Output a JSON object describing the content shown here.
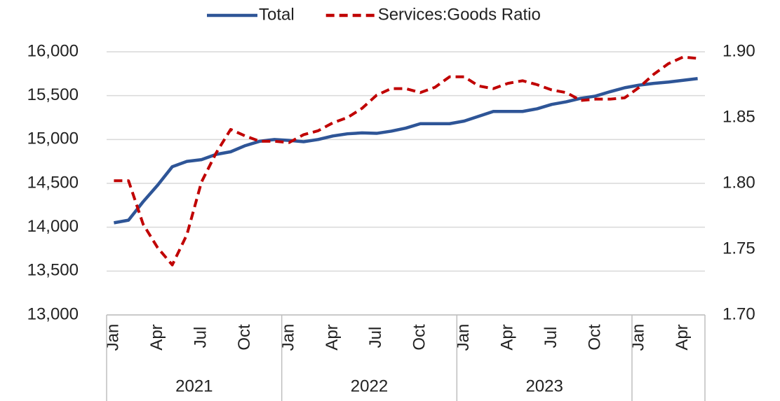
{
  "chart_data": {
    "type": "line",
    "categories": [
      "Jan",
      null,
      null,
      "Apr",
      null,
      null,
      "Jul",
      null,
      null,
      "Oct",
      null,
      null,
      "Jan",
      null,
      null,
      "Apr",
      null,
      null,
      "Jul",
      null,
      null,
      "Oct",
      null,
      null,
      "Jan",
      null,
      null,
      "Apr",
      null,
      null,
      "Jul",
      null,
      null,
      "Oct",
      null,
      null,
      "Jan",
      null,
      null,
      "Apr",
      null
    ],
    "groups": [
      "2021",
      "2022",
      "2023",
      null
    ],
    "series": [
      {
        "name": "Total",
        "color": "#2e5597",
        "dash": false,
        "values": [
          14050,
          14080,
          14290,
          14480,
          14690,
          14750,
          14770,
          14830,
          14860,
          14930,
          14980,
          15000,
          14990,
          14975,
          15000,
          15040,
          15065,
          15075,
          15070,
          15095,
          15130,
          15180,
          15180,
          15180,
          15210,
          15265,
          15320,
          15320,
          15320,
          15350,
          15400,
          15430,
          15470,
          15495,
          15545,
          15590,
          15620,
          15640,
          15655,
          15675,
          15695
        ]
      },
      {
        "name": "Services:Goods Ratio",
        "color": "#c00000",
        "dash": true,
        "axis": "y2",
        "values": [
          1.802,
          1.802,
          1.769,
          1.751,
          1.738,
          1.761,
          1.801,
          1.823,
          1.841,
          1.836,
          1.832,
          1.832,
          1.831,
          1.837,
          1.84,
          1.846,
          1.85,
          1.857,
          1.867,
          1.872,
          1.872,
          1.869,
          1.873,
          1.881,
          1.881,
          1.874,
          1.872,
          1.876,
          1.878,
          1.875,
          1.871,
          1.869,
          1.863,
          1.864,
          1.864,
          1.865,
          1.873,
          1.883,
          1.891,
          1.896,
          1.895
        ]
      }
    ],
    "ylim": [
      13000,
      16000
    ],
    "yticks": [
      {
        "value": 13000,
        "label": "13,000"
      },
      {
        "value": 13500,
        "label": "13,500"
      },
      {
        "value": 14000,
        "label": "14,000"
      },
      {
        "value": 14500,
        "label": "14,500"
      },
      {
        "value": 15000,
        "label": "15,000"
      },
      {
        "value": 15500,
        "label": "15,500"
      },
      {
        "value": 16000,
        "label": "16,000"
      }
    ],
    "y2lim": [
      1.7,
      1.9
    ],
    "y2ticks": [
      {
        "value": 1.7,
        "label": "1.70"
      },
      {
        "value": 1.75,
        "label": "1.75"
      },
      {
        "value": 1.8,
        "label": "1.80"
      },
      {
        "value": 1.85,
        "label": "1.85"
      },
      {
        "value": 1.9,
        "label": "1.90"
      }
    ],
    "grid": true,
    "legend": "top"
  }
}
